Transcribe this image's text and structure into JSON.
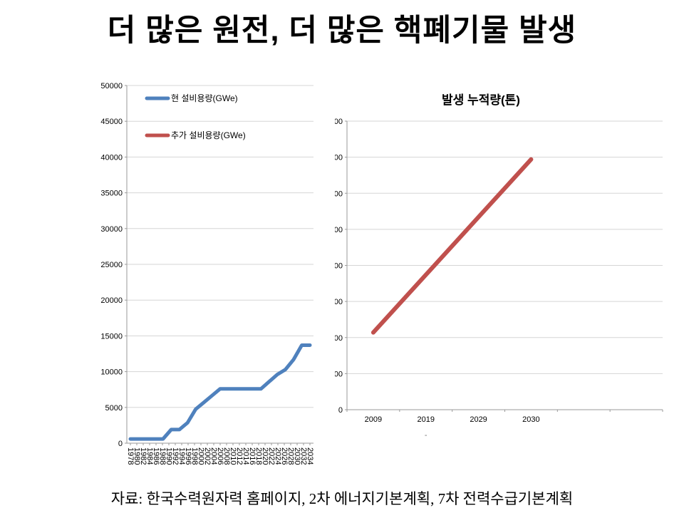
{
  "slide": {
    "title": "더 많은 원전, 더 많은 핵폐기물 발생",
    "source": "자료: 한국수력원자력 홈페이지, 2차 에너지기본계획, 7차 전력수급기본계획"
  },
  "colors": {
    "blue_series": "#4F81BD",
    "red_series": "#C0504D",
    "gridline": "#D5D5D5",
    "axis": "#9A9A9A",
    "text": "#000000"
  },
  "chart_data": [
    {
      "type": "line",
      "name": "installed-capacity-chart",
      "title": "",
      "grid": true,
      "legend_position": "top-left-inside",
      "ylim": [
        0,
        50000
      ],
      "ytick_step": 5000,
      "x_axis_labels": [
        "1978",
        "1980",
        "1982",
        "1984",
        "1986",
        "1988",
        "1990",
        "1992",
        "1994",
        "1996",
        "1998",
        "2000",
        "2002",
        "2004",
        "2006",
        "2008",
        "2010",
        "2012",
        "2014",
        "2016",
        "2018",
        "2020",
        "2022",
        "2024",
        "2026",
        "2028",
        "2030",
        "2032",
        "2034"
      ],
      "x_axis_label_rotation": 90,
      "series": [
        {
          "name": "현 설비용량(GWe)",
          "color": "#4F81BD",
          "x": [
            1978,
            1979,
            1980,
            1981,
            1982,
            1983,
            1984,
            1985,
            1986,
            1987,
            1988,
            1989,
            1990,
            1991,
            1992,
            1993,
            1994,
            1995,
            1996,
            1997,
            1998,
            1999,
            2000
          ],
          "values": [
            590,
            590,
            590,
            590,
            590,
            1900,
            1900,
            2850,
            4750,
            5700,
            6650,
            7600,
            7600,
            7600,
            7600,
            7600,
            7600,
            8600,
            9600,
            10300,
            11700,
            13700,
            13700
          ]
        },
        {
          "name": "추가 설비용량(GWe)",
          "color": "#C0504D",
          "x": [],
          "values": []
        }
      ]
    },
    {
      "type": "line",
      "name": "cumulative-waste-chart",
      "title": "발생 누적량(톤)",
      "grid": true,
      "ylim": [
        0,
        40000
      ],
      "ytick_step": 5000,
      "categories": [
        "2009",
        "2019",
        "2029",
        "2030"
      ],
      "series": [
        {
          "name": "발생 누적량(톤)",
          "color": "#C0504D",
          "values": [
            10700,
            18700,
            26700,
            34700
          ]
        }
      ],
      "stray_mark": "-"
    }
  ]
}
